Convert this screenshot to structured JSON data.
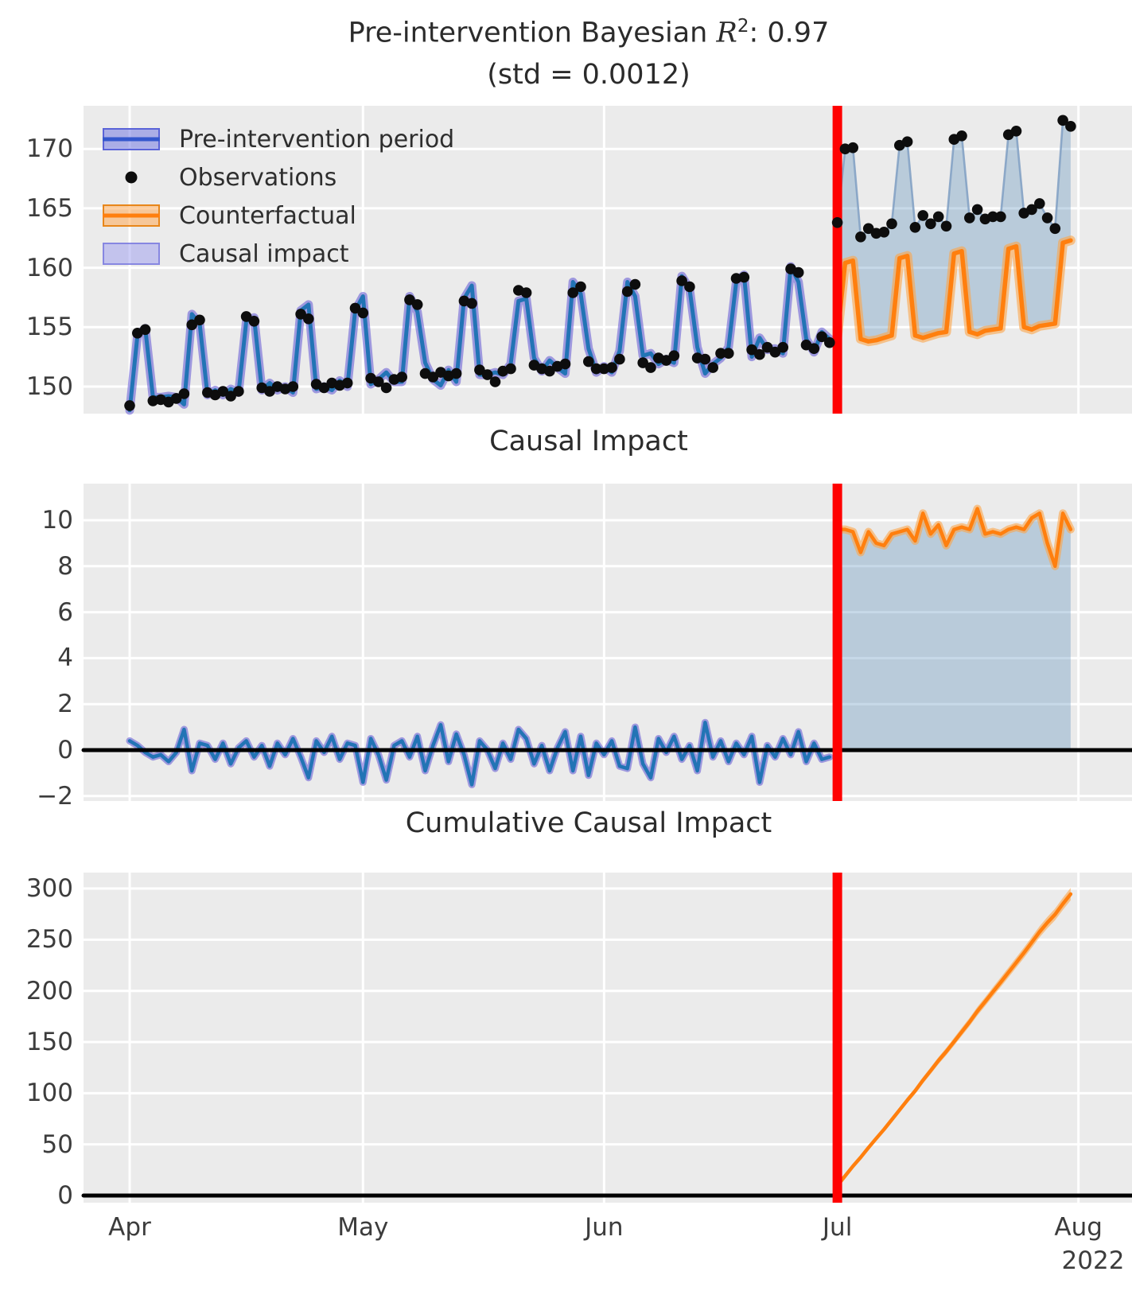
{
  "titles": {
    "panel1_prefix": "Pre-intervention Bayesian ",
    "panel1_r": "R",
    "panel1_sup": "2",
    "panel1_suffix": ": 0.97",
    "panel1_line2": "(std = 0.0012)",
    "panel2": "Causal Impact",
    "panel3": "Cumulative Causal Impact"
  },
  "legend": {
    "items": [
      {
        "label": "Pre-intervention period",
        "swatch": "blue-band-with-line"
      },
      {
        "label": "Observations",
        "swatch": "black-dot"
      },
      {
        "label": "Counterfactual",
        "swatch": "orange-band-with-line"
      },
      {
        "label": "Causal impact",
        "swatch": "light-blue-patch"
      }
    ]
  },
  "axes": {
    "x_tick_labels": [
      "Apr",
      "May",
      "Jun",
      "Jul",
      "Aug"
    ],
    "x_tick_days": [
      0,
      30,
      61,
      91,
      122
    ],
    "year_label": "2022",
    "panel1_yticks": [
      150,
      155,
      160,
      165,
      170
    ],
    "panel2_yticks": [
      -2,
      0,
      2,
      4,
      6,
      8,
      10
    ],
    "panel3_yticks": [
      0,
      50,
      100,
      150,
      200,
      250,
      300
    ]
  },
  "colors": {
    "axes_background": "#ebebeb",
    "grid": "#ffffff",
    "tick_text": "#3c3c3c",
    "title_text": "#2b2b2b",
    "observation_dot": "#0d0d0d",
    "model_line": "#2274b5",
    "model_band": "rgba(106,97,214,0.60)",
    "counterfactual_line": "#ff7f0e",
    "counterfactual_band": "rgba(252,165,73,0.60)",
    "impact_fill": "rgba(70,130,180,0.30)",
    "post_connector": "rgba(132,162,196,0.90)",
    "intervention_line": "#ff0000",
    "zero_line": "#000000",
    "legend_pre_fill": "rgba(105,112,225,0.50)",
    "legend_pre_border": "#5a63d8",
    "legend_pre_line": "#3457cd",
    "legend_cf_fill": "rgba(255,170,85,0.55)",
    "legend_cf_border": "#e8861a",
    "legend_cf_line": "#ff7f0e",
    "legend_ci_fill": "rgba(150,150,238,0.48)",
    "legend_ci_border": "rgba(110,110,220,0.70)"
  },
  "chart_data": {
    "type": "line",
    "x": {
      "unit": "day",
      "start_date": "2022-04-01",
      "intervention_date": "2022-07-01",
      "last_date": "2022-07-31",
      "tick_labels": [
        "Apr",
        "May",
        "Jun",
        "Jul",
        "Aug"
      ],
      "year": "2022"
    },
    "panels": [
      {
        "title": "Pre-intervention Bayesian R^2: 0.97 (std = 0.0012)",
        "ylim": [
          147.7,
          173.6
        ],
        "grid": true,
        "legend_position": "upper left"
      },
      {
        "title": "Causal Impact",
        "ylim": [
          -2.2,
          11.6
        ],
        "grid": true,
        "zero_line": true
      },
      {
        "title": "Cumulative Causal Impact",
        "ylim": [
          -7,
          315.7
        ],
        "grid": true,
        "zero_line": true
      }
    ],
    "pre_intervention_r2": {
      "mean": 0.97,
      "std": 0.0012
    },
    "seasonality": "weekly (weekend spikes), rising trend, intervention at Jul adds ~+9.5",
    "observations": [
      148.4,
      154.5,
      154.8,
      148.8,
      148.9,
      148.7,
      149.0,
      149.4,
      155.2,
      155.6,
      149.5,
      149.3,
      149.6,
      149.2,
      149.6,
      155.9,
      155.5,
      149.9,
      149.6,
      150.0,
      149.8,
      150.0,
      156.1,
      155.7,
      150.2,
      149.9,
      150.3,
      150.1,
      150.3,
      156.6,
      156.2,
      150.7,
      150.4,
      149.9,
      150.6,
      150.8,
      157.3,
      156.9,
      151.1,
      150.8,
      151.2,
      150.9,
      151.1,
      157.2,
      157.0,
      151.4,
      151.0,
      150.4,
      151.3,
      151.5,
      158.1,
      157.9,
      151.8,
      151.5,
      151.3,
      151.7,
      151.9,
      157.9,
      158.4,
      152.1,
      151.5,
      151.5,
      151.6,
      152.3,
      158.0,
      158.6,
      152.0,
      151.6,
      152.4,
      152.2,
      152.6,
      158.9,
      158.4,
      152.4,
      152.3,
      151.6,
      152.8,
      152.8,
      159.1,
      159.2,
      153.1,
      152.7,
      153.3,
      152.9,
      153.3,
      159.9,
      159.6,
      153.5,
      153.2,
      154.2,
      153.7,
      163.8,
      170.0,
      170.1,
      162.6,
      163.3,
      162.9,
      163.0,
      163.7,
      170.3,
      170.6,
      163.4,
      164.4,
      163.7,
      164.3,
      163.5,
      170.8,
      171.1,
      164.2,
      164.9,
      164.1,
      164.3,
      164.3,
      171.2,
      171.5,
      164.6,
      164.9,
      165.4,
      164.2,
      163.3,
      172.4,
      171.9
    ],
    "pre_impact": [
      0.4,
      0.2,
      -0.1,
      -0.3,
      -0.2,
      -0.5,
      -0.1,
      0.9,
      -0.9,
      0.3,
      0.2,
      -0.4,
      0.3,
      -0.6,
      0.1,
      0.4,
      -0.3,
      0.2,
      -0.7,
      0.3,
      -0.2,
      0.5,
      -0.3,
      -1.2,
      0.4,
      -0.1,
      0.6,
      -0.4,
      0.3,
      0.2,
      -1.4,
      0.5,
      -0.2,
      -1.3,
      0.2,
      0.4,
      -0.3,
      0.6,
      -0.9,
      0.2,
      1.1,
      -0.5,
      0.7,
      -0.2,
      -1.5,
      0.4,
      0.0,
      -0.8,
      0.3,
      -0.4,
      0.9,
      0.5,
      -0.6,
      0.2,
      -0.9,
      0.1,
      0.8,
      -0.9,
      0.6,
      -1.1,
      0.3,
      -0.2,
      0.4,
      -0.7,
      -0.8,
      1.0,
      -0.6,
      -1.2,
      0.5,
      -0.1,
      0.6,
      -0.4,
      0.2,
      -0.9,
      1.2,
      -0.3,
      0.4,
      -0.5,
      0.3,
      -0.2,
      0.6,
      -1.4,
      0.2,
      -0.3,
      0.5,
      -0.2,
      0.8,
      -0.5,
      0.3,
      -0.4,
      -0.3
    ],
    "post_counterfactual": [
      154.2,
      160.4,
      160.6,
      154.0,
      153.8,
      153.9,
      154.1,
      154.3,
      160.8,
      161.0,
      154.3,
      154.1,
      154.3,
      154.5,
      154.6,
      161.2,
      161.4,
      154.6,
      154.4,
      154.7,
      154.8,
      154.9,
      161.6,
      161.8,
      155.0,
      154.8,
      155.1,
      155.2,
      155.3,
      162.1,
      162.3
    ],
    "post_impact": [
      9.6,
      9.6,
      9.5,
      8.6,
      9.5,
      9.0,
      8.9,
      9.4,
      9.5,
      9.6,
      9.1,
      10.3,
      9.4,
      9.8,
      8.9,
      9.6,
      9.7,
      9.6,
      10.5,
      9.4,
      9.5,
      9.4,
      9.6,
      9.7,
      9.6,
      10.1,
      10.3,
      9.0,
      8.0,
      10.3,
      9.6
    ],
    "post_cumulative_impact": [
      9.6,
      19.2,
      28.7,
      37.3,
      46.8,
      55.8,
      64.7,
      74.1,
      83.6,
      93.2,
      102.3,
      112.6,
      122.0,
      131.8,
      140.7,
      150.3,
      160.0,
      169.6,
      180.1,
      189.5,
      199.0,
      208.4,
      218.0,
      227.7,
      237.3,
      247.4,
      257.7,
      266.7,
      274.7,
      285.0,
      294.6
    ]
  }
}
